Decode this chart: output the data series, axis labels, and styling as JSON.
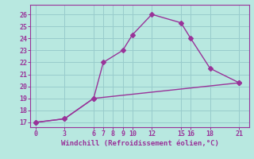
{
  "xlabel": "Windchill (Refroidissement éolien,°C)",
  "line1_x": [
    0,
    3,
    6,
    7,
    9,
    10,
    12,
    15,
    16,
    18,
    21
  ],
  "line1_y": [
    17,
    17.3,
    19,
    22,
    23,
    24.3,
    26,
    25.3,
    24,
    21.5,
    20.3
  ],
  "line2_x": [
    0,
    3,
    6,
    21
  ],
  "line2_y": [
    17,
    17.3,
    19,
    20.3
  ],
  "line_color": "#993399",
  "bg_color": "#b8e8e0",
  "grid_color": "#99cccc",
  "xlim": [
    -0.5,
    22
  ],
  "ylim": [
    16.6,
    26.8
  ],
  "xticks": [
    0,
    3,
    6,
    7,
    8,
    9,
    10,
    12,
    15,
    16,
    18,
    21
  ],
  "yticks": [
    17,
    18,
    19,
    20,
    21,
    22,
    23,
    24,
    25,
    26
  ],
  "markersize": 3,
  "linewidth": 1.0,
  "tick_fontsize": 6,
  "xlabel_fontsize": 6.5
}
